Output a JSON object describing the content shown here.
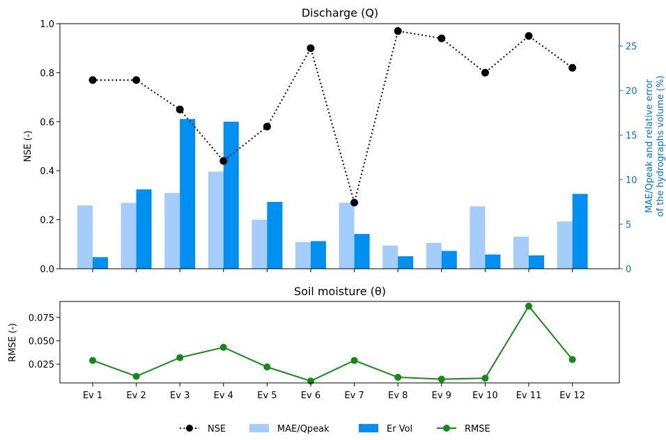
{
  "chart_data": [
    {
      "type": "bar+line",
      "title": "Discharge (Q)",
      "categories": [
        "Ev 1",
        "Ev 2",
        "Ev 3",
        "Ev 4",
        "Ev 5",
        "Ev 6",
        "Ev 7",
        "Ev 8",
        "Ev 9",
        "Ev 10",
        "Ev 11",
        "Ev 12"
      ],
      "ylabel": "NSE (-)",
      "ylim": [
        0,
        1.0
      ],
      "yticks": [
        "0.0",
        "0.2",
        "0.4",
        "0.6",
        "0.8",
        "1.0"
      ],
      "y2label_line1": "MAE/Qpeak and relative error",
      "y2label_line2": "of the hydrographs volume (%)",
      "y2lim": [
        0,
        27.5
      ],
      "y2ticks": [
        "0",
        "5",
        "10",
        "15",
        "20",
        "25"
      ],
      "series": [
        {
          "name": "NSE",
          "kind": "line",
          "axis": "left",
          "color": "#000000",
          "style": "dotted",
          "values": [
            0.77,
            0.77,
            0.65,
            0.44,
            0.58,
            0.9,
            0.27,
            0.97,
            0.94,
            0.8,
            0.95,
            0.82
          ]
        },
        {
          "name": "MAE/Qpeak",
          "kind": "bar",
          "axis": "right",
          "color": "#a4cdfc",
          "values": [
            7.1,
            7.4,
            8.5,
            10.9,
            5.5,
            3.0,
            7.4,
            2.6,
            2.9,
            7.0,
            3.6,
            5.3
          ]
        },
        {
          "name": "Er Vol",
          "kind": "bar",
          "axis": "right",
          "color": "#0090f2",
          "values": [
            1.3,
            8.9,
            16.8,
            16.5,
            7.5,
            3.1,
            3.9,
            1.4,
            2.0,
            1.6,
            1.5,
            8.4
          ]
        }
      ]
    },
    {
      "type": "line",
      "title": "Soil moisture (θ)",
      "categories": [
        "Ev 1",
        "Ev 2",
        "Ev 3",
        "Ev 4",
        "Ev 5",
        "Ev 6",
        "Ev 7",
        "Ev 8",
        "Ev 9",
        "Ev 10",
        "Ev 11",
        "Ev 12"
      ],
      "ylabel": "RMSE (-)",
      "ylim": [
        0.005,
        0.092
      ],
      "yticks": [
        "0.025",
        "0.050",
        "0.075"
      ],
      "series": [
        {
          "name": "RMSE",
          "kind": "line",
          "color": "#138a13",
          "values": [
            0.029,
            0.012,
            0.032,
            0.043,
            0.022,
            0.007,
            0.029,
            0.011,
            0.009,
            0.01,
            0.087,
            0.03
          ]
        }
      ]
    }
  ],
  "legend": {
    "position": "bottom-center",
    "items": [
      {
        "label": "NSE",
        "color": "#000000",
        "marker": "dotted-line-dot"
      },
      {
        "label": "MAE/Qpeak",
        "color": "#a4cdfc",
        "marker": "bar"
      },
      {
        "label": "Er Vol",
        "color": "#0090f2",
        "marker": "bar"
      },
      {
        "label": "RMSE",
        "color": "#138a13",
        "marker": "line-dot"
      }
    ]
  },
  "colors": {
    "axis_right": "#0074d9",
    "axis": "#000000"
  }
}
